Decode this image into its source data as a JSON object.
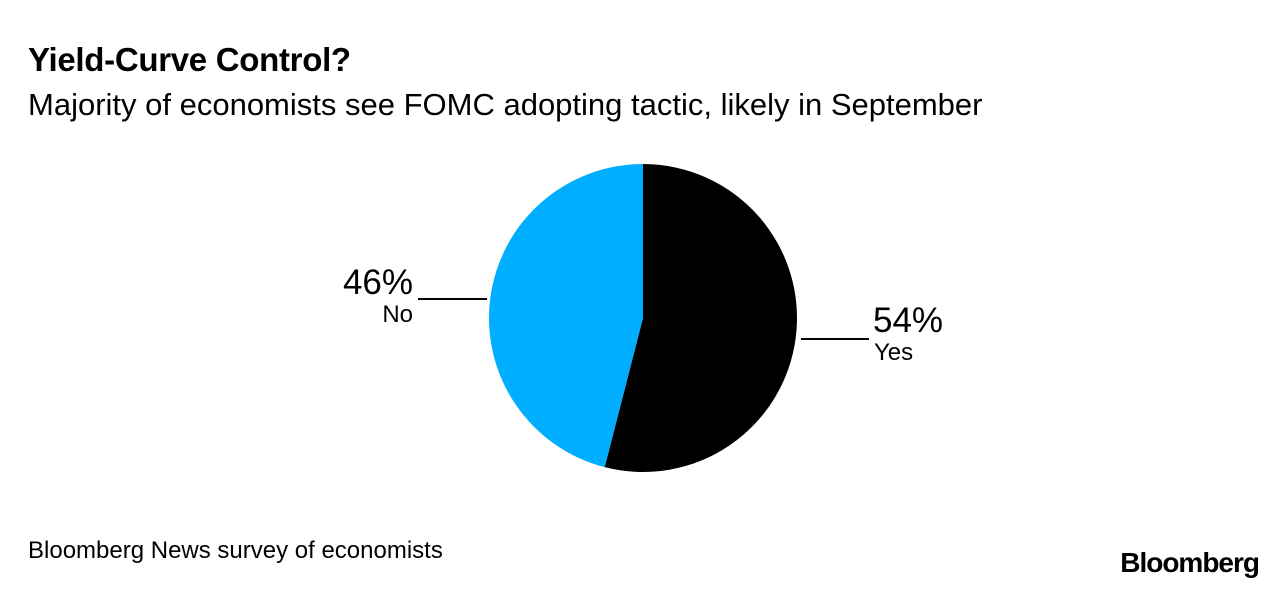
{
  "chart_data": {
    "type": "pie",
    "title": "Yield-Curve Control?",
    "subtitle": "Majority of economists see FOMC adopting tactic, likely in September",
    "slices": [
      {
        "label": "Yes",
        "value": 54,
        "value_label": "54%",
        "color": "#000000"
      },
      {
        "label": "No",
        "value": 46,
        "value_label": "46%",
        "color": "#00aeff"
      }
    ],
    "source": "Bloomberg News survey of economists"
  },
  "brand": "Bloomberg"
}
